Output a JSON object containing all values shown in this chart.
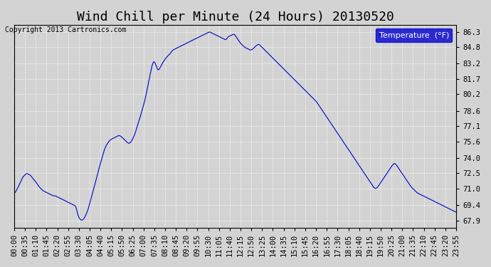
{
  "title": "Wind Chill per Minute (24 Hours) 20130520",
  "copyright": "Copyright 2013 Cartronics.com",
  "legend_label": "Temperature  (°F)",
  "line_color": "#0000cc",
  "background_color": "#d3d3d3",
  "plot_bg_color": "#d3d3d3",
  "yticks": [
    67.9,
    69.4,
    71.0,
    72.5,
    74.0,
    75.6,
    77.1,
    78.6,
    80.2,
    81.7,
    83.2,
    84.8,
    86.3
  ],
  "ylim": [
    67.2,
    87.0
  ],
  "xlabel": "",
  "ylabel": "",
  "title_fontsize": 13,
  "tick_fontsize": 7.5,
  "xtick_labels": [
    "00:00",
    "00:35",
    "01:10",
    "01:45",
    "02:20",
    "02:55",
    "03:30",
    "04:05",
    "04:40",
    "05:15",
    "05:50",
    "06:25",
    "07:00",
    "07:35",
    "08:10",
    "08:45",
    "09:20",
    "09:55",
    "10:30",
    "11:05",
    "11:40",
    "12:15",
    "12:50",
    "13:25",
    "14:00",
    "14:35",
    "15:10",
    "15:45",
    "16:20",
    "16:55",
    "17:30",
    "18:05",
    "18:40",
    "19:15",
    "19:50",
    "20:25",
    "21:00",
    "21:35",
    "22:10",
    "22:45",
    "23:20",
    "23:55"
  ],
  "data_y": [
    70.5,
    70.8,
    71.2,
    71.6,
    72.1,
    72.3,
    72.5,
    72.4,
    72.3,
    72.0,
    71.8,
    71.5,
    71.2,
    71.0,
    70.8,
    70.7,
    70.6,
    70.5,
    70.4,
    70.3,
    70.3,
    70.2,
    70.1,
    70.0,
    69.9,
    69.8,
    69.7,
    69.6,
    69.5,
    69.4,
    69.3,
    68.4,
    68.0,
    67.9,
    68.1,
    68.5,
    69.0,
    69.8,
    70.5,
    71.2,
    72.0,
    72.8,
    73.5,
    74.2,
    74.9,
    75.3,
    75.6,
    75.8,
    75.9,
    76.0,
    76.1,
    76.2,
    76.1,
    75.9,
    75.7,
    75.5,
    75.4,
    75.6,
    76.0,
    76.5,
    77.2,
    77.8,
    78.5,
    79.2,
    80.0,
    81.0,
    82.0,
    83.0,
    83.5,
    83.0,
    82.5,
    82.8,
    83.2,
    83.5,
    83.8,
    84.0,
    84.2,
    84.5,
    84.6,
    84.7,
    84.8,
    84.9,
    85.0,
    85.1,
    85.2,
    85.3,
    85.4,
    85.5,
    85.6,
    85.7,
    85.8,
    85.9,
    86.0,
    86.1,
    86.2,
    86.3,
    86.2,
    86.1,
    86.0,
    85.9,
    85.8,
    85.7,
    85.6,
    85.5,
    85.8,
    85.9,
    86.0,
    86.1,
    85.8,
    85.5,
    85.2,
    85.0,
    84.8,
    84.7,
    84.6,
    84.5,
    84.6,
    84.8,
    85.0,
    85.1,
    84.9,
    84.7,
    84.5,
    84.3,
    84.1,
    83.9,
    83.7,
    83.5,
    83.3,
    83.1,
    82.9,
    82.7,
    82.5,
    82.3,
    82.1,
    81.9,
    81.7,
    81.5,
    81.3,
    81.1,
    80.9,
    80.7,
    80.5,
    80.3,
    80.1,
    79.9,
    79.7,
    79.5,
    79.2,
    78.9,
    78.6,
    78.3,
    78.0,
    77.7,
    77.4,
    77.1,
    76.8,
    76.5,
    76.2,
    75.9,
    75.6,
    75.3,
    75.0,
    74.7,
    74.4,
    74.1,
    73.8,
    73.5,
    73.2,
    72.9,
    72.6,
    72.3,
    72.0,
    71.7,
    71.4,
    71.1,
    71.0,
    71.2,
    71.5,
    71.8,
    72.1,
    72.4,
    72.7,
    73.0,
    73.3,
    73.5,
    73.3,
    73.0,
    72.7,
    72.4,
    72.1,
    71.8,
    71.5,
    71.2,
    71.0,
    70.8,
    70.6,
    70.5,
    70.4,
    70.3,
    70.2,
    70.1,
    70.0,
    69.9,
    69.8,
    69.7,
    69.6,
    69.5,
    69.4,
    69.3,
    69.2,
    69.1,
    69.0,
    68.9,
    68.8,
    68.7
  ]
}
